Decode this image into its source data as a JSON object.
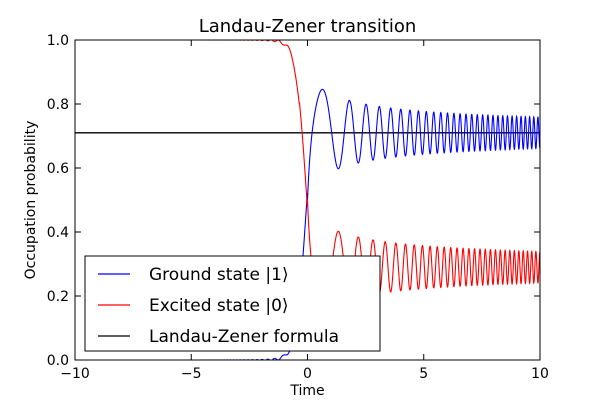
{
  "chart_data": {
    "type": "line",
    "title": "Landau-Zener transition",
    "xlabel": "Time",
    "ylabel": "Occupation probability",
    "xlim": [
      -10,
      10
    ],
    "ylim": [
      0.0,
      1.0
    ],
    "x_ticks": [
      "−10",
      "−5",
      "0",
      "5",
      "10"
    ],
    "x_tick_values": [
      -10,
      -5,
      0,
      5,
      10
    ],
    "y_ticks": [
      "0.0",
      "0.2",
      "0.4",
      "0.6",
      "0.8",
      "1.0"
    ],
    "y_tick_values": [
      0.0,
      0.2,
      0.4,
      0.6,
      0.8,
      1.0
    ],
    "grid": false,
    "legend_position": "lower-left",
    "landau_zener_probability": 0.71,
    "series": [
      {
        "name": "Ground state |1⟩",
        "color": "#0000ff",
        "description_points": {
          "x": [
            -10,
            -2,
            -1,
            0,
            0.55,
            1.0,
            1.5,
            2,
            3,
            5,
            10
          ],
          "y": [
            0.0,
            0.0,
            0.03,
            0.5,
            0.87,
            0.6,
            0.8,
            0.65,
            0.77,
            0.73,
            0.72
          ]
        }
      },
      {
        "name": "Excited state |0⟩",
        "color": "#ff0000",
        "description_points": {
          "x": [
            -10,
            -2,
            -1,
            0,
            0.55,
            1.0,
            1.5,
            2,
            3,
            5,
            10
          ],
          "y": [
            1.0,
            1.0,
            0.97,
            0.5,
            0.13,
            0.4,
            0.2,
            0.35,
            0.23,
            0.27,
            0.28
          ]
        }
      },
      {
        "name": "Landau-Zener formula",
        "color": "#000000",
        "x": [
          -10,
          10
        ],
        "y": [
          0.71,
          0.71
        ]
      }
    ]
  }
}
